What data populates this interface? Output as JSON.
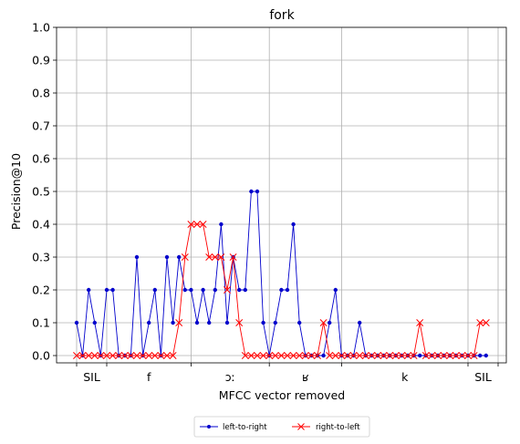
{
  "chart_data": {
    "type": "line",
    "title": "fork",
    "xlabel": "MFCC vector removed",
    "ylabel": "Precision@10",
    "ylim": [
      0.0,
      1.0
    ],
    "yticks": [
      "0.0",
      "0.1",
      "0.2",
      "0.3",
      "0.4",
      "0.5",
      "0.6",
      "0.7",
      "0.8",
      "0.9",
      "1.0"
    ],
    "grid": true,
    "legend_position": "bottom-center",
    "phones": [
      {
        "label": "SIL",
        "start": 0,
        "end": 5
      },
      {
        "label": "f",
        "start": 5,
        "end": 19
      },
      {
        "label": "ɔː",
        "start": 19,
        "end": 32
      },
      {
        "label": "ʁ",
        "start": 32,
        "end": 44
      },
      {
        "label": "k",
        "start": 44,
        "end": 65
      },
      {
        "label": "SIL",
        "start": 65,
        "end": 70
      }
    ],
    "series": [
      {
        "name": "left-to-right",
        "color": "#0000cc",
        "marker": "dot",
        "x": [
          0,
          1,
          2,
          3,
          4,
          5,
          6,
          7,
          8,
          9,
          10,
          11,
          12,
          13,
          14,
          15,
          16,
          17,
          18,
          19,
          20,
          21,
          22,
          23,
          24,
          25,
          26,
          27,
          28,
          29,
          30,
          31,
          32,
          33,
          34,
          35,
          36,
          37,
          38,
          39,
          40,
          41,
          42,
          43,
          44,
          45,
          46,
          47,
          48,
          49,
          50,
          51,
          52,
          53,
          54,
          55,
          56,
          57,
          58,
          59,
          60,
          61,
          62,
          63,
          64,
          65,
          66,
          67,
          68
        ],
        "values": [
          0.1,
          0.0,
          0.2,
          0.1,
          0.0,
          0.2,
          0.2,
          0.0,
          0.0,
          0.0,
          0.3,
          0.0,
          0.1,
          0.2,
          0.0,
          0.3,
          0.1,
          0.3,
          0.2,
          0.2,
          0.1,
          0.2,
          0.1,
          0.2,
          0.4,
          0.1,
          0.3,
          0.2,
          0.2,
          0.5,
          0.5,
          0.1,
          0.0,
          0.1,
          0.2,
          0.2,
          0.4,
          0.1,
          0.0,
          0.0,
          0.0,
          0.0,
          0.1,
          0.2,
          0.0,
          0.0,
          0.0,
          0.1,
          0.0,
          0.0,
          0.0,
          0.0,
          0.0,
          0.0,
          0.0,
          0.0,
          0.0,
          0.0,
          0.0,
          0.0,
          0.0,
          0.0,
          0.0,
          0.0,
          0.0,
          0.0,
          0.0,
          0.0,
          0.0
        ]
      },
      {
        "name": "right-to-left",
        "color": "#ff0000",
        "marker": "x",
        "x": [
          0,
          1,
          2,
          3,
          4,
          5,
          6,
          7,
          8,
          9,
          10,
          11,
          12,
          13,
          14,
          15,
          16,
          17,
          18,
          19,
          20,
          21,
          22,
          23,
          24,
          25,
          26,
          27,
          28,
          29,
          30,
          31,
          32,
          33,
          34,
          35,
          36,
          37,
          38,
          39,
          40,
          41,
          42,
          43,
          44,
          45,
          46,
          47,
          48,
          49,
          50,
          51,
          52,
          53,
          54,
          55,
          56,
          57,
          58,
          59,
          60,
          61,
          62,
          63,
          64,
          65,
          66,
          67,
          68
        ],
        "values": [
          0.0,
          0.0,
          0.0,
          0.0,
          0.0,
          0.0,
          0.0,
          0.0,
          0.0,
          0.0,
          0.0,
          0.0,
          0.0,
          0.0,
          0.0,
          0.0,
          0.0,
          0.1,
          0.3,
          0.4,
          0.4,
          0.4,
          0.3,
          0.3,
          0.3,
          0.2,
          0.3,
          0.1,
          0.0,
          0.0,
          0.0,
          0.0,
          0.0,
          0.0,
          0.0,
          0.0,
          0.0,
          0.0,
          0.0,
          0.0,
          0.0,
          0.1,
          0.0,
          0.0,
          0.0,
          0.0,
          0.0,
          0.0,
          0.0,
          0.0,
          0.0,
          0.0,
          0.0,
          0.0,
          0.0,
          0.0,
          0.0,
          0.1,
          0.0,
          0.0,
          0.0,
          0.0,
          0.0,
          0.0,
          0.0,
          0.0,
          0.0,
          0.1,
          0.1
        ]
      }
    ]
  }
}
